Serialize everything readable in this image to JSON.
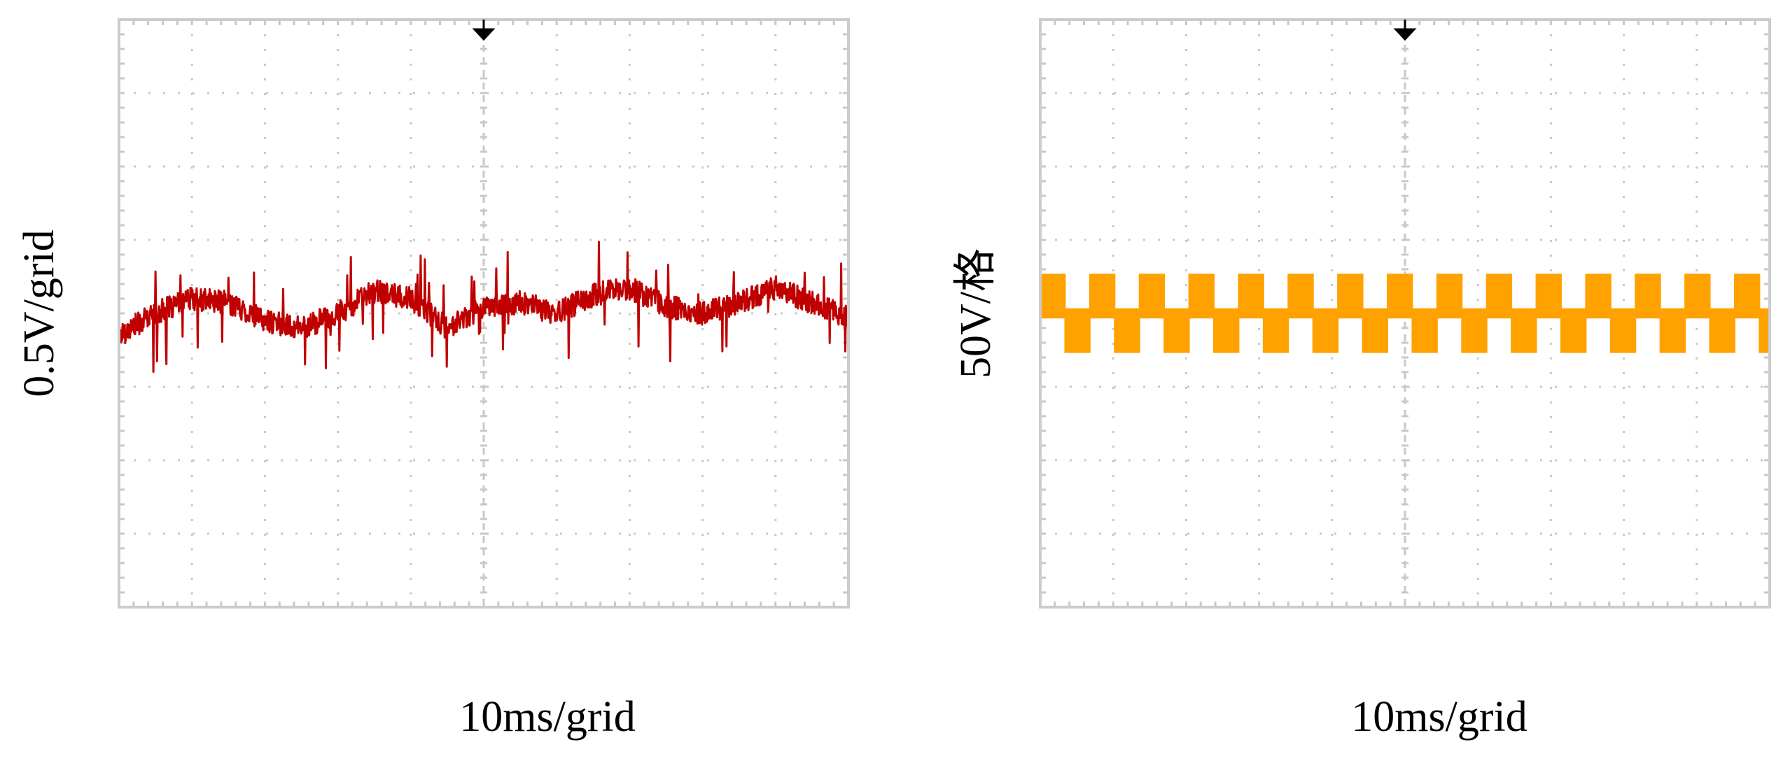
{
  "chart_data": [
    {
      "type": "line",
      "ylabel": "0.5V/grid",
      "xlabel": "10ms/grid",
      "x_divisions": 10,
      "y_divisions": 8,
      "xlim": [
        0,
        10
      ],
      "ylim": [
        -4,
        4
      ],
      "trigger_marker_x": 5,
      "grid": true,
      "series": [
        {
          "color": "#c00000",
          "waveform": "noisy low-frequency ripple",
          "x": [
            0,
            0.5,
            1,
            1.5,
            2,
            2.5,
            3,
            3.5,
            4,
            4.5,
            5,
            5.5,
            6,
            6.5,
            7,
            7.5,
            8,
            8.5,
            9,
            9.5,
            10
          ],
          "values": [
            -0.3,
            0.0,
            0.2,
            0.15,
            -0.1,
            -0.2,
            0.0,
            0.3,
            0.2,
            -0.2,
            0.1,
            0.15,
            0.0,
            0.25,
            0.35,
            0.1,
            0.0,
            0.15,
            0.35,
            0.15,
            -0.05
          ]
        }
      ]
    },
    {
      "type": "line",
      "ylabel": "50V/格",
      "xlabel": "10ms/grid",
      "x_divisions": 10,
      "y_divisions": 8,
      "xlim": [
        0,
        10
      ],
      "ylim": [
        -4,
        4
      ],
      "trigger_marker_x": 5,
      "grid": true,
      "series": [
        {
          "color": "#ffa200",
          "waveform": "square wave",
          "high": 0.45,
          "low": -0.45,
          "mid": 0.0,
          "period_divisions": 0.68,
          "periods": 15
        }
      ]
    }
  ]
}
